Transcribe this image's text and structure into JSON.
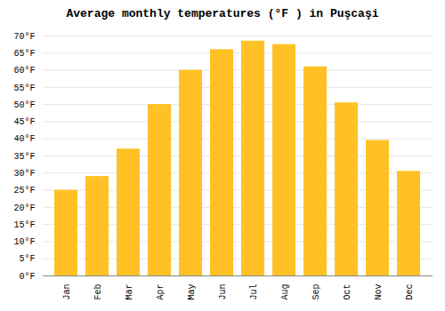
{
  "chart_data": {
    "type": "bar",
    "title": "Average monthly temperatures (°F ) in Puşcaşi",
    "categories": [
      "Jan",
      "Feb",
      "Mar",
      "Apr",
      "May",
      "Jun",
      "Jul",
      "Aug",
      "Sep",
      "Oct",
      "Nov",
      "Dec"
    ],
    "values": [
      25,
      29,
      37,
      50,
      60,
      66,
      68.5,
      67.5,
      61,
      50.5,
      39.5,
      30.5
    ],
    "color": "#FFC125",
    "ylim": [
      0,
      70
    ],
    "yticks": [
      {
        "value": 0,
        "label": "0°F"
      },
      {
        "value": 5,
        "label": "5°F"
      },
      {
        "value": 10,
        "label": "10°F"
      },
      {
        "value": 15,
        "label": "15°F"
      },
      {
        "value": 20,
        "label": "20°F"
      },
      {
        "value": 25,
        "label": "25°F"
      },
      {
        "value": 30,
        "label": "30°F"
      },
      {
        "value": 35,
        "label": "35°F"
      },
      {
        "value": 40,
        "label": "40°F"
      },
      {
        "value": 45,
        "label": "45°F"
      },
      {
        "value": 50,
        "label": "50°F"
      },
      {
        "value": 55,
        "label": "55°F"
      },
      {
        "value": 60,
        "label": "60°F"
      },
      {
        "value": 65,
        "label": "65°F"
      },
      {
        "value": 70,
        "label": "70°F"
      }
    ],
    "grid": true
  }
}
